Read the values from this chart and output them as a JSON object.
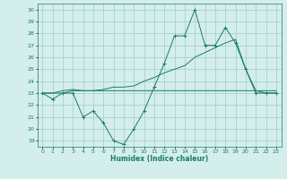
{
  "xlabel": "Humidex (Indice chaleur)",
  "ylabel": "",
  "xlim": [
    -0.5,
    23.5
  ],
  "ylim": [
    18.5,
    30.5
  ],
  "yticks": [
    19,
    20,
    21,
    22,
    23,
    24,
    25,
    26,
    27,
    28,
    29,
    30
  ],
  "xticks": [
    0,
    1,
    2,
    3,
    4,
    5,
    6,
    7,
    8,
    9,
    10,
    11,
    12,
    13,
    14,
    15,
    16,
    17,
    18,
    19,
    20,
    21,
    22,
    23
  ],
  "line_color": "#1a7a6e",
  "bg_color": "#d4eeeb",
  "grid_color": "#a0ccc8",
  "line1": [
    23,
    22.5,
    23,
    23,
    21,
    21.5,
    20.5,
    19,
    18.7,
    20,
    21.5,
    23.5,
    25.5,
    27.8,
    27.8,
    30,
    27,
    27,
    28.5,
    27.2,
    25,
    23,
    23,
    23
  ],
  "line2": [
    23,
    23,
    23,
    23.2,
    23.2,
    23.2,
    23.2,
    23.2,
    23.2,
    23.2,
    23.2,
    23.2,
    23.2,
    23.2,
    23.2,
    23.2,
    23.2,
    23.2,
    23.2,
    23.2,
    23.2,
    23.2,
    23.2,
    23.2
  ],
  "line3": [
    23,
    23,
    23.2,
    23.3,
    23.2,
    23.2,
    23.3,
    23.5,
    23.5,
    23.6,
    24.0,
    24.3,
    24.7,
    25.0,
    25.3,
    26.0,
    26.4,
    26.8,
    27.2,
    27.5,
    25.0,
    23.2,
    23.0,
    23.0
  ]
}
